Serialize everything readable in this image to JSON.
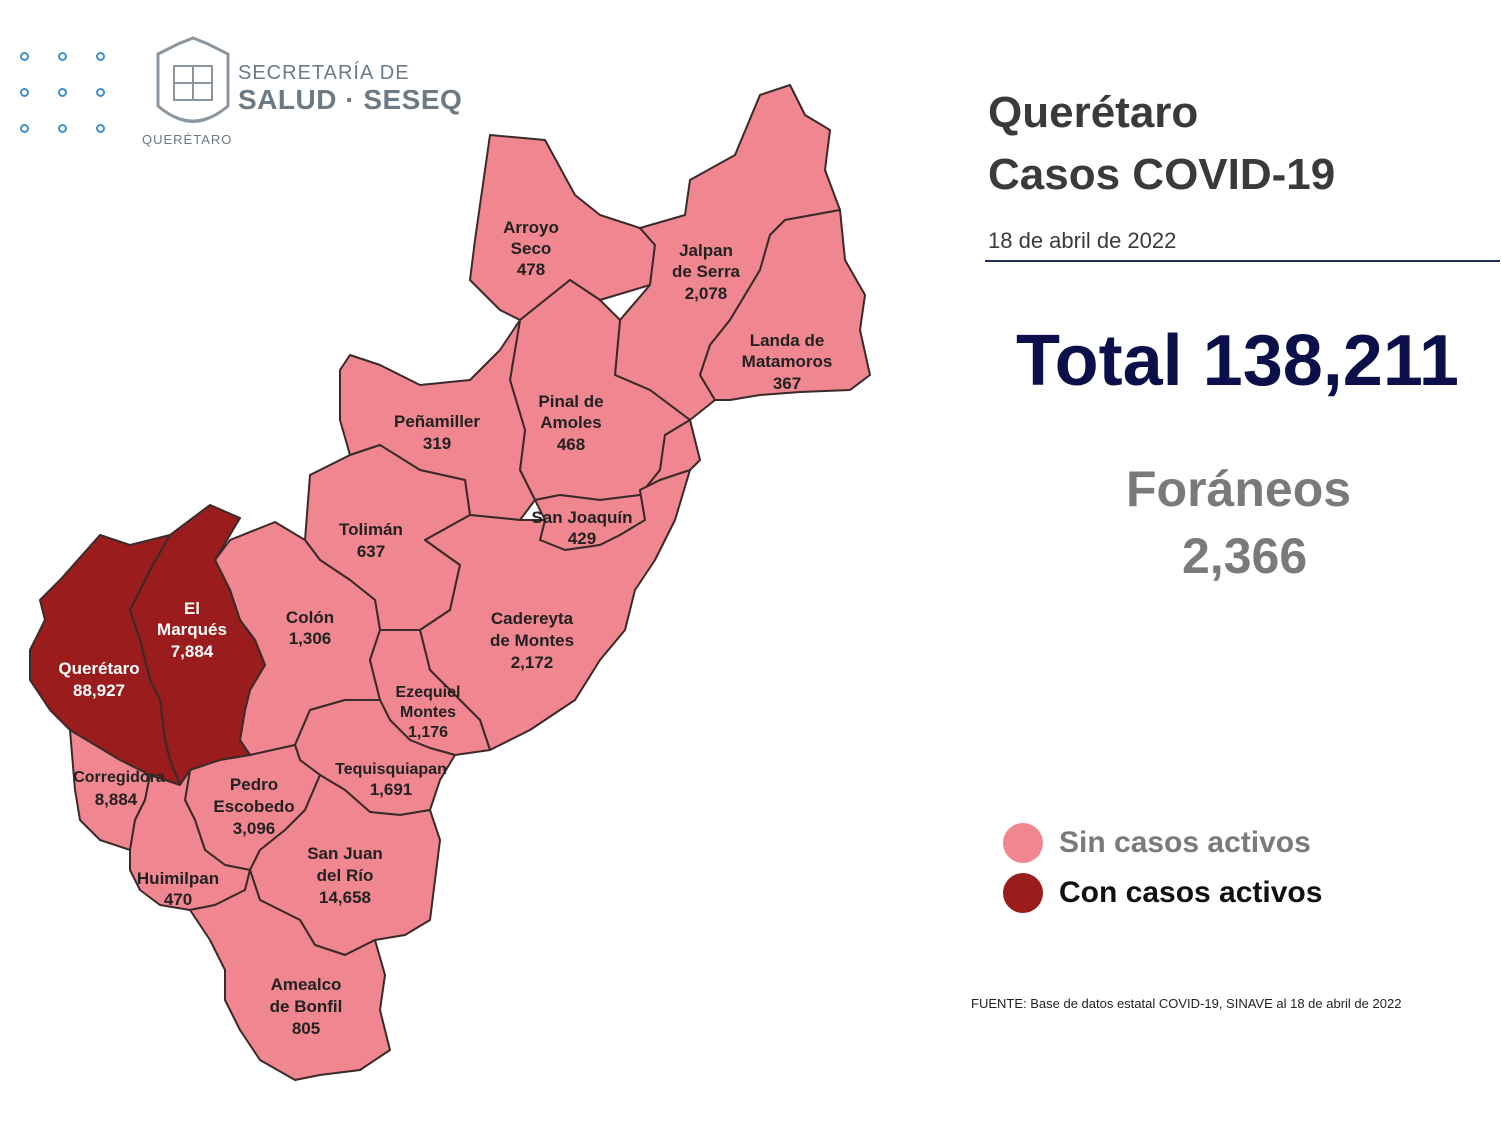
{
  "header": {
    "org_line1": "SECRETARÍA DE",
    "org_line2": "SALUD · SESEQ",
    "org_state": "QUERÉTARO"
  },
  "title": {
    "line1": "Querétaro",
    "line2": "Casos COVID-19",
    "date": "18 de abril  de 2022"
  },
  "summary": {
    "total": "Total 138,211",
    "foraneos_label": "Foráneos",
    "foraneos_value": "2,366"
  },
  "legend": [
    {
      "label": "Sin casos activos",
      "color": "#f0868f"
    },
    {
      "label": "Con casos activos",
      "color": "#9b1c1c"
    }
  ],
  "colors": {
    "sin_casos": "#f0868f",
    "con_casos": "#9b1c1c",
    "accent": "#0b0f4a"
  },
  "municipios": [
    {
      "name": "Arroyo Seco",
      "lines": [
        "Arroyo",
        "Seco"
      ],
      "value": "478",
      "status": "sin"
    },
    {
      "name": "Jalpan de Serra",
      "lines": [
        "Jalpan",
        "de Serra"
      ],
      "value": "2,078",
      "status": "sin"
    },
    {
      "name": "Landa de Matamoros",
      "lines": [
        "Landa de",
        "Matamoros"
      ],
      "value": "367",
      "status": "sin"
    },
    {
      "name": "Pinal de Amoles",
      "lines": [
        "Pinal de",
        "Amoles"
      ],
      "value": "468",
      "status": "sin"
    },
    {
      "name": "Peñamiller",
      "lines": [
        "Peñamiller"
      ],
      "value": "319",
      "status": "sin"
    },
    {
      "name": "San Joaquín",
      "lines": [
        "San Joaquín"
      ],
      "value": "429",
      "status": "sin"
    },
    {
      "name": "Tolimán",
      "lines": [
        "Tolimán"
      ],
      "value": "637",
      "status": "sin"
    },
    {
      "name": "Cadereyta de Montes",
      "lines": [
        "Cadereyta",
        "de Montes"
      ],
      "value": "2,172",
      "status": "sin"
    },
    {
      "name": "Colón",
      "lines": [
        "Colón"
      ],
      "value": "1,306",
      "status": "sin"
    },
    {
      "name": "El Marqués",
      "lines": [
        "El",
        "Marqués"
      ],
      "value": "7,884",
      "status": "con"
    },
    {
      "name": "Querétaro",
      "lines": [
        "Querétaro"
      ],
      "value": "88,927",
      "status": "con"
    },
    {
      "name": "Ezequiel Montes",
      "lines": [
        "Ezequiel",
        "Montes"
      ],
      "value": "1,176",
      "status": "sin"
    },
    {
      "name": "Tequisquiapan",
      "lines": [
        "Tequisquiapan"
      ],
      "value": "1,691",
      "status": "sin"
    },
    {
      "name": "Corregidora",
      "lines": [
        "Corregidora"
      ],
      "value": "8,884",
      "status": "sin"
    },
    {
      "name": "Pedro Escobedo",
      "lines": [
        "Pedro",
        "Escobedo"
      ],
      "value": "3,096",
      "status": "sin"
    },
    {
      "name": "Huimilpan",
      "lines": [
        "Huimilpan"
      ],
      "value": "470",
      "status": "sin"
    },
    {
      "name": "San Juan del Río",
      "lines": [
        "San Juan",
        "del Río"
      ],
      "value": "14,658",
      "status": "sin"
    },
    {
      "name": "Amealco de Bonfil",
      "lines": [
        "Amealco",
        "de Bonfil"
      ],
      "value": "805",
      "status": "sin"
    }
  ],
  "source": "FUENTE: Base de datos estatal  COVID-19,  SINAVE  al 18 de abril de 2022"
}
